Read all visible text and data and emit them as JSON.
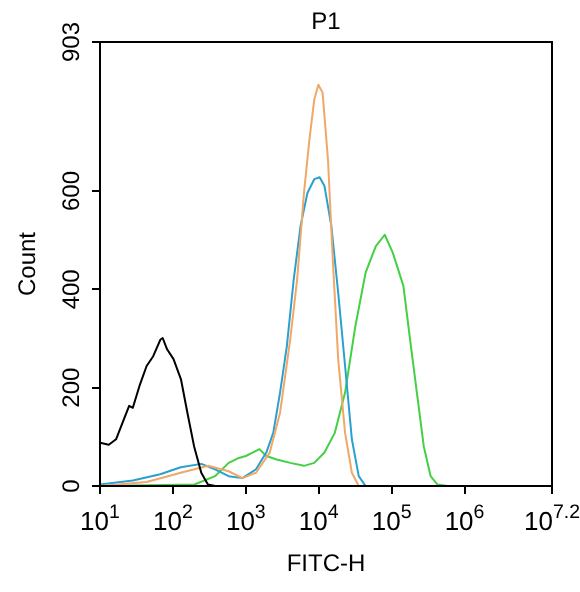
{
  "chart_data": {
    "type": "line",
    "title": "P1",
    "xlabel": "FITC-H",
    "ylabel": "Count",
    "log": "x",
    "grid": false,
    "legend": false,
    "marker": "none",
    "line_style": "solid",
    "xlim": [
      10,
      15848932
    ],
    "ylim": [
      0,
      903
    ],
    "xticks": [
      {
        "value": 10,
        "label": "10$^{1}$"
      },
      {
        "value": 100,
        "label": "10$^{2}$"
      },
      {
        "value": 1000,
        "label": "10$^{3}$"
      },
      {
        "value": 10000,
        "label": "10$^{4}$"
      },
      {
        "value": 100000,
        "label": "10$^{5}$"
      },
      {
        "value": 1000000,
        "label": "10$^{6}$"
      },
      {
        "value": 15848932,
        "label": "10$^{7.2}$"
      }
    ],
    "yticks": [
      0,
      200,
      400,
      600,
      903
    ],
    "series": [
      {
        "color": "#000000",
        "x": [
          10,
          13.2,
          16.6,
          20.4,
          25.1,
          28.2,
          34.7,
          43.6,
          53.7,
          67.6,
          72.4,
          83.2,
          102,
          129,
          158,
          195,
          245,
          302,
          380
        ],
        "values": [
          88,
          84,
          95,
          129,
          163,
          159,
          203,
          244,
          264,
          298,
          301,
          278,
          258,
          217,
          149,
          81,
          27,
          3,
          0
        ]
      },
      {
        "color": "#f0a868",
        "x": [
          10,
          43.5,
          128,
          305,
          582,
          897,
          1380,
          2130,
          2950,
          4070,
          5060,
          6280,
          7460,
          8690,
          9890,
          11300,
          13400,
          15600,
          18500,
          23000,
          28500,
          35400
        ],
        "values": [
          0,
          8,
          27,
          41,
          30,
          16,
          27,
          68,
          149,
          298,
          420,
          596,
          705,
          786,
          816,
          800,
          664,
          461,
          258,
          108,
          27,
          0
        ]
      },
      {
        "color": "#2aa0d0",
        "x": [
          10,
          28.2,
          67,
          128,
          245,
          378,
          582,
          897,
          1380,
          1910,
          2380,
          2950,
          3660,
          4540,
          5640,
          7000,
          8690,
          10300,
          12000,
          14900,
          18500,
          23000,
          28500,
          35400,
          44000
        ],
        "values": [
          3,
          11,
          24,
          38,
          45,
          34,
          20,
          16,
          34,
          68,
          108,
          190,
          285,
          420,
          529,
          596,
          624,
          628,
          610,
          529,
          393,
          244,
          95,
          20,
          0
        ]
      },
      {
        "color": "#44d044",
        "x": [
          10,
          198,
          378,
          582,
          805,
          1000,
          1240,
          1540,
          1910,
          2650,
          4070,
          6280,
          8690,
          12000,
          16600,
          23000,
          31800,
          44000,
          60800,
          80500,
          104000,
          145000,
          179000,
          222000,
          276000,
          343000,
          426000,
          589000
        ],
        "values": [
          0,
          3,
          20,
          47,
          57,
          61,
          68,
          75,
          61,
          54,
          47,
          41,
          47,
          68,
          108,
          190,
          325,
          434,
          488,
          511,
          474,
          407,
          298,
          190,
          81,
          20,
          3,
          0
        ]
      }
    ]
  }
}
